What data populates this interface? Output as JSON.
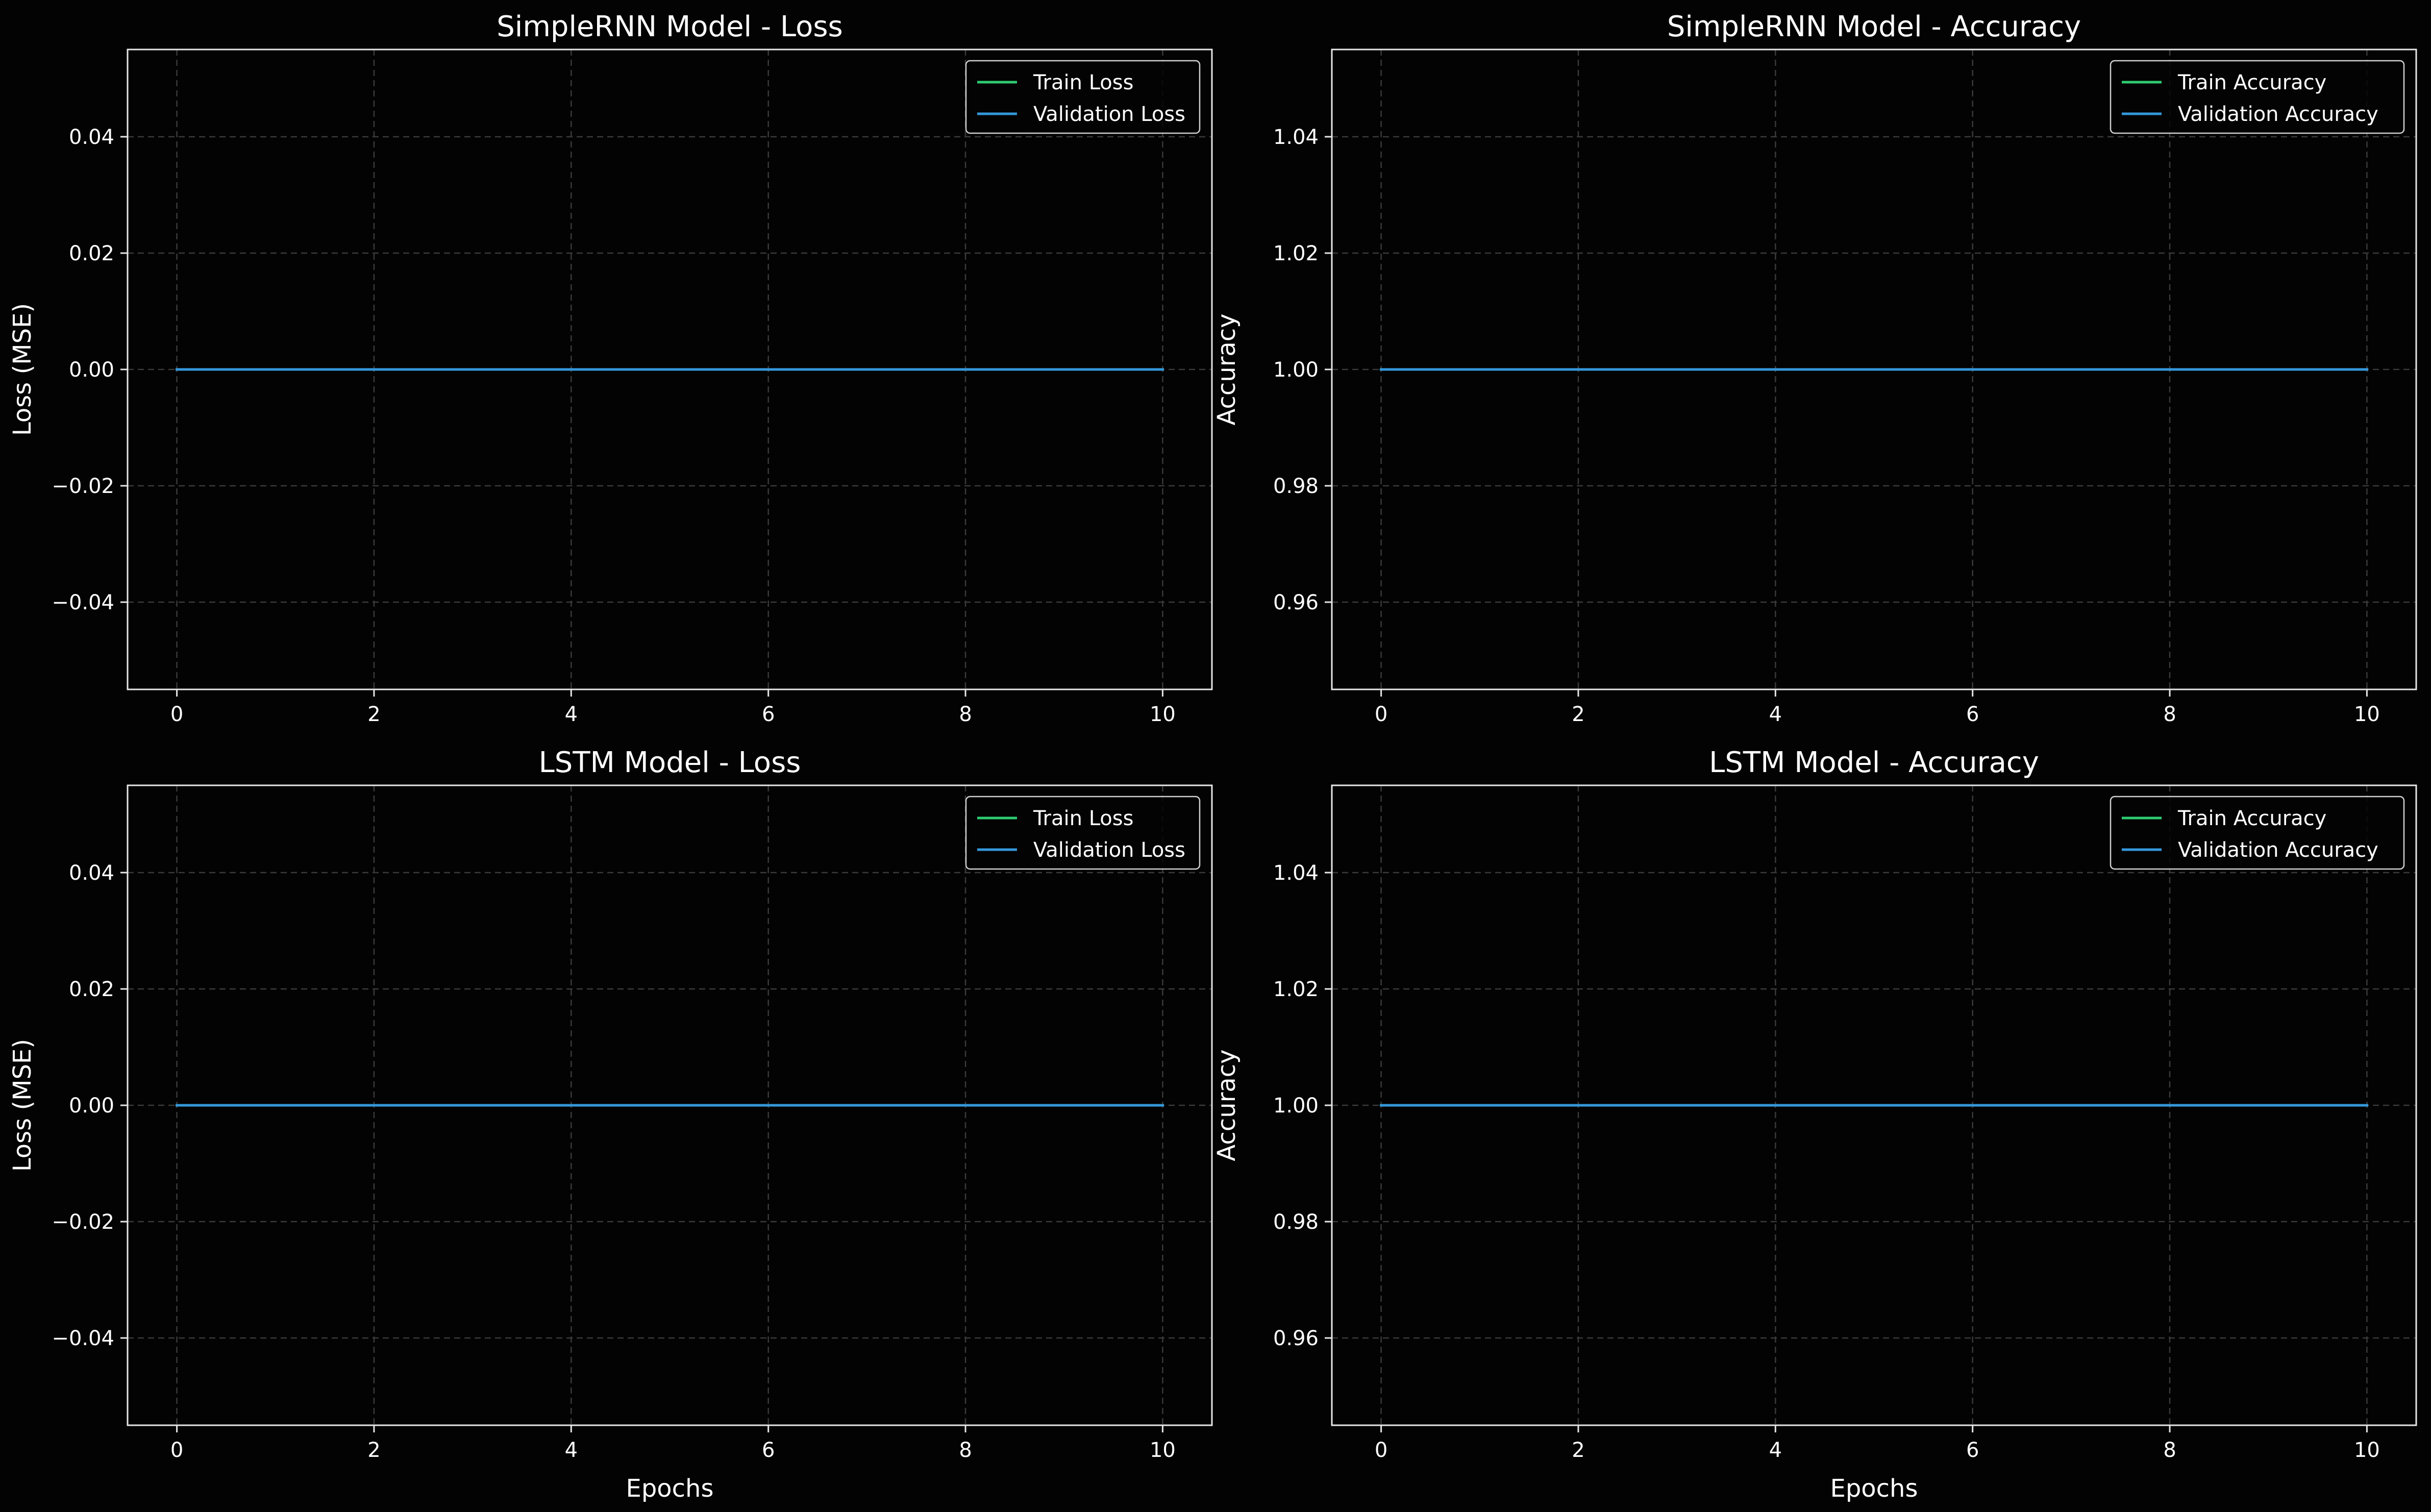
{
  "colors": {
    "background": "#030303",
    "train": "#2ecc71",
    "validation": "#3498db",
    "grid": "#3a3a3a",
    "axes": "#e6e6e6"
  },
  "chart_data": [
    {
      "type": "line",
      "title": "SimpleRNN Model - Loss",
      "xlabel": "",
      "ylabel": "Loss (MSE)",
      "xlim": [
        -0.5,
        10.5
      ],
      "ylim": [
        -0.055,
        0.055
      ],
      "xticks": [
        0,
        2,
        4,
        6,
        8,
        10
      ],
      "yticks": [
        -0.04,
        -0.02,
        0.0,
        0.02,
        0.04
      ],
      "ytick_labels": [
        "−0.04",
        "−0.02",
        "0.00",
        "0.02",
        "0.04"
      ],
      "grid": true,
      "legend": "top-right",
      "x": [
        0,
        1,
        2,
        3,
        4,
        5,
        6,
        7,
        8,
        9,
        10
      ],
      "series": [
        {
          "name": "Train Loss",
          "color_key": "train",
          "values": [
            0,
            0,
            0,
            0,
            0,
            0,
            0,
            0,
            0,
            0,
            0
          ]
        },
        {
          "name": "Validation Loss",
          "color_key": "validation",
          "values": [
            0,
            0,
            0,
            0,
            0,
            0,
            0,
            0,
            0,
            0,
            0
          ]
        }
      ]
    },
    {
      "type": "line",
      "title": "SimpleRNN Model - Accuracy",
      "xlabel": "",
      "ylabel": "Accuracy",
      "xlim": [
        -0.5,
        10.5
      ],
      "ylim": [
        0.945,
        1.055
      ],
      "xticks": [
        0,
        2,
        4,
        6,
        8,
        10
      ],
      "yticks": [
        0.96,
        0.98,
        1.0,
        1.02,
        1.04
      ],
      "ytick_labels": [
        "0.96",
        "0.98",
        "1.00",
        "1.02",
        "1.04"
      ],
      "grid": true,
      "legend": "top-right",
      "x": [
        0,
        1,
        2,
        3,
        4,
        5,
        6,
        7,
        8,
        9,
        10
      ],
      "series": [
        {
          "name": "Train Accuracy",
          "color_key": "train",
          "values": [
            1,
            1,
            1,
            1,
            1,
            1,
            1,
            1,
            1,
            1,
            1
          ]
        },
        {
          "name": "Validation Accuracy",
          "color_key": "validation",
          "values": [
            1,
            1,
            1,
            1,
            1,
            1,
            1,
            1,
            1,
            1,
            1
          ]
        }
      ]
    },
    {
      "type": "line",
      "title": "LSTM Model - Loss",
      "xlabel": "Epochs",
      "ylabel": "Loss (MSE)",
      "xlim": [
        -0.5,
        10.5
      ],
      "ylim": [
        -0.055,
        0.055
      ],
      "xticks": [
        0,
        2,
        4,
        6,
        8,
        10
      ],
      "yticks": [
        -0.04,
        -0.02,
        0.0,
        0.02,
        0.04
      ],
      "ytick_labels": [
        "−0.04",
        "−0.02",
        "0.00",
        "0.02",
        "0.04"
      ],
      "grid": true,
      "legend": "top-right",
      "x": [
        0,
        1,
        2,
        3,
        4,
        5,
        6,
        7,
        8,
        9,
        10
      ],
      "series": [
        {
          "name": "Train Loss",
          "color_key": "train",
          "values": [
            0,
            0,
            0,
            0,
            0,
            0,
            0,
            0,
            0,
            0,
            0
          ]
        },
        {
          "name": "Validation Loss",
          "color_key": "validation",
          "values": [
            0,
            0,
            0,
            0,
            0,
            0,
            0,
            0,
            0,
            0,
            0
          ]
        }
      ]
    },
    {
      "type": "line",
      "title": "LSTM Model - Accuracy",
      "xlabel": "Epochs",
      "ylabel": "Accuracy",
      "xlim": [
        -0.5,
        10.5
      ],
      "ylim": [
        0.945,
        1.055
      ],
      "xticks": [
        0,
        2,
        4,
        6,
        8,
        10
      ],
      "yticks": [
        0.96,
        0.98,
        1.0,
        1.02,
        1.04
      ],
      "ytick_labels": [
        "0.96",
        "0.98",
        "1.00",
        "1.02",
        "1.04"
      ],
      "grid": true,
      "legend": "top-right",
      "x": [
        0,
        1,
        2,
        3,
        4,
        5,
        6,
        7,
        8,
        9,
        10
      ],
      "series": [
        {
          "name": "Train Accuracy",
          "color_key": "train",
          "values": [
            1,
            1,
            1,
            1,
            1,
            1,
            1,
            1,
            1,
            1,
            1
          ]
        },
        {
          "name": "Validation Accuracy",
          "color_key": "validation",
          "values": [
            1,
            1,
            1,
            1,
            1,
            1,
            1,
            1,
            1,
            1,
            1
          ]
        }
      ]
    }
  ]
}
